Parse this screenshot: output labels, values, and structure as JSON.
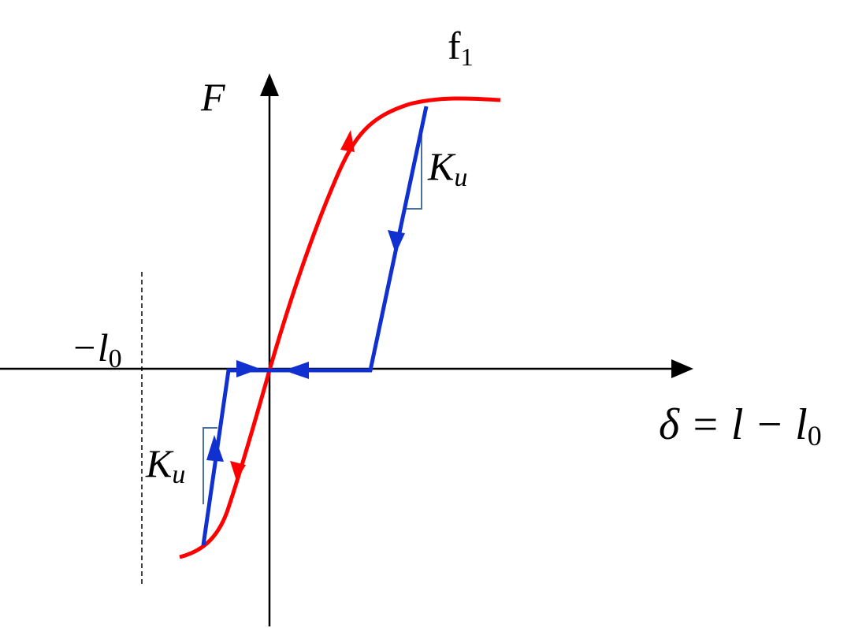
{
  "labels": {
    "curve": {
      "main": "f",
      "sub": "1"
    },
    "y_axis": "F",
    "stiffness_upper": {
      "main": "K",
      "sub": "u"
    },
    "stiffness_lower": {
      "main": "K",
      "sub": "u"
    },
    "offset": {
      "main": "−l",
      "sub": "0"
    },
    "x_axis": {
      "main": "δ = l − l",
      "sub": "0"
    }
  }
}
